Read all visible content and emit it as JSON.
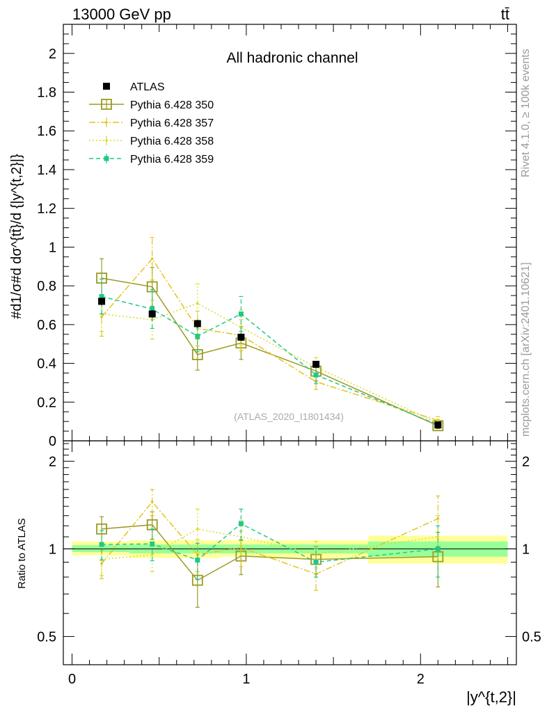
{
  "header": {
    "energy_label": "13000 GeV pp",
    "process_label": "tt̄",
    "channel_label": "All hadronic channel",
    "analysis_id": "(ATLAS_2020_I1801434)",
    "side_label_top": "Rivet 4.1.0, ≥ 100k events",
    "side_label_bottom": "mcplots.cern.ch [arXiv:2401.10621]"
  },
  "colors": {
    "data": "#000000",
    "pythia_350": "#9a9a22",
    "pythia_357": "#e6c21a",
    "pythia_358": "#d8dc2a",
    "pythia_359": "#1ec88a",
    "band_outer": "#ffff99",
    "band_inner": "#99ff99"
  },
  "chart_data": [
    {
      "type": "line",
      "panel": "main",
      "title": "All hadronic channel",
      "xlabel": "|y^{t,2}|",
      "ylabel": "#d1/σ#d dσ^{tt̄}/d {|y^{t,2}|}",
      "xlim": [
        -0.05,
        2.55
      ],
      "ylim": [
        0,
        2.15
      ],
      "yticks": [
        0,
        0.2,
        0.4,
        0.6,
        0.8,
        1,
        1.2,
        1.4,
        1.6,
        1.8,
        2
      ],
      "ytick_labels": [
        "0",
        "0.2",
        "0.4",
        "0.6",
        "0.8",
        "1",
        "1.2",
        "1.4",
        "1.6",
        "1.8",
        "2"
      ],
      "legend": {
        "placement": "top-left",
        "entries": [
          "ATLAS",
          "Pythia 6.428 350",
          "Pythia 6.428 357",
          "Pythia 6.428 358",
          "Pythia 6.428 359"
        ]
      },
      "x": [
        0.17,
        0.46,
        0.72,
        0.97,
        1.4,
        2.1
      ],
      "xerr": [
        0.17,
        0.12,
        0.13,
        0.12,
        0.3,
        0.4
      ],
      "series": [
        {
          "name": "ATLAS",
          "style": "data",
          "values": [
            0.72,
            0.655,
            0.605,
            0.535,
            0.395,
            0.082
          ],
          "err": [
            0.02,
            0.02,
            0.02,
            0.02,
            0.015,
            0.006
          ]
        },
        {
          "name": "Pythia 6.428 350",
          "style": "solid",
          "values": [
            0.84,
            0.795,
            0.445,
            0.505,
            0.36,
            0.078
          ],
          "err": [
            0.1,
            0.1,
            0.08,
            0.085,
            0.05,
            0.015
          ]
        },
        {
          "name": "Pythia 6.428 357",
          "style": "dashdot",
          "values": [
            0.64,
            0.94,
            0.58,
            0.545,
            0.305,
            0.105
          ],
          "err": [
            0.1,
            0.11,
            0.09,
            0.08,
            0.04,
            0.02
          ]
        },
        {
          "name": "Pythia 6.428 358",
          "style": "dotted",
          "values": [
            0.655,
            0.625,
            0.71,
            0.585,
            0.38,
            0.092
          ],
          "err": [
            0.09,
            0.1,
            0.1,
            0.09,
            0.05,
            0.018
          ]
        },
        {
          "name": "Pythia 6.428 359",
          "style": "dashed",
          "values": [
            0.745,
            0.68,
            0.54,
            0.655,
            0.34,
            0.083
          ],
          "err": [
            0.09,
            0.1,
            0.08,
            0.09,
            0.045,
            0.015
          ]
        }
      ]
    },
    {
      "type": "line",
      "panel": "ratio",
      "ylabel": "Ratio to ATLAS",
      "xlabel": "|y^{t,2}|",
      "xlim": [
        -0.05,
        2.55
      ],
      "ylim": [
        0.4,
        2.35
      ],
      "scale": "log",
      "yticks": [
        0.5,
        1,
        2
      ],
      "ytick_labels": [
        "0.5",
        "1",
        "2"
      ],
      "xticks": [
        0,
        1,
        2
      ],
      "xtick_labels": [
        "0",
        "1",
        "2"
      ],
      "bands": [
        {
          "x0": 0.0,
          "x1": 0.33,
          "outer": [
            0.95,
            1.06
          ],
          "inner": [
            0.975,
            1.03
          ]
        },
        {
          "x0": 0.33,
          "x1": 0.6,
          "outer": [
            0.93,
            1.07
          ],
          "inner": [
            0.965,
            1.035
          ]
        },
        {
          "x0": 0.6,
          "x1": 0.85,
          "outer": [
            0.93,
            1.07
          ],
          "inner": [
            0.965,
            1.035
          ]
        },
        {
          "x0": 0.85,
          "x1": 1.1,
          "outer": [
            0.94,
            1.07
          ],
          "inner": [
            0.965,
            1.035
          ]
        },
        {
          "x0": 1.1,
          "x1": 1.7,
          "outer": [
            0.93,
            1.07
          ],
          "inner": [
            0.965,
            1.035
          ]
        },
        {
          "x0": 1.7,
          "x1": 2.5,
          "outer": [
            0.89,
            1.11
          ],
          "inner": [
            0.94,
            1.06
          ]
        }
      ],
      "series": [
        {
          "name": "Pythia 6.428 350",
          "style": "solid",
          "values": [
            1.17,
            1.21,
            0.78,
            0.945,
            0.92,
            0.94
          ],
          "err": [
            0.12,
            0.13,
            0.15,
            0.13,
            0.1,
            0.2
          ]
        },
        {
          "name": "Pythia 6.428 357",
          "style": "dashdot",
          "values": [
            0.89,
            1.45,
            0.955,
            1.01,
            0.82,
            1.27
          ],
          "err": [
            0.1,
            0.15,
            0.12,
            0.14,
            0.1,
            0.25
          ]
        },
        {
          "name": "Pythia 6.428 358",
          "style": "dotted",
          "values": [
            0.92,
            0.955,
            1.17,
            1.1,
            0.96,
            1.1
          ],
          "err": [
            0.11,
            0.12,
            0.2,
            0.15,
            0.1,
            0.2
          ]
        },
        {
          "name": "Pythia 6.428 359",
          "style": "dashed",
          "values": [
            1.035,
            1.04,
            0.915,
            1.22,
            0.9,
            1.0
          ],
          "err": [
            0.12,
            0.13,
            0.13,
            0.15,
            0.1,
            0.2
          ]
        }
      ]
    }
  ]
}
